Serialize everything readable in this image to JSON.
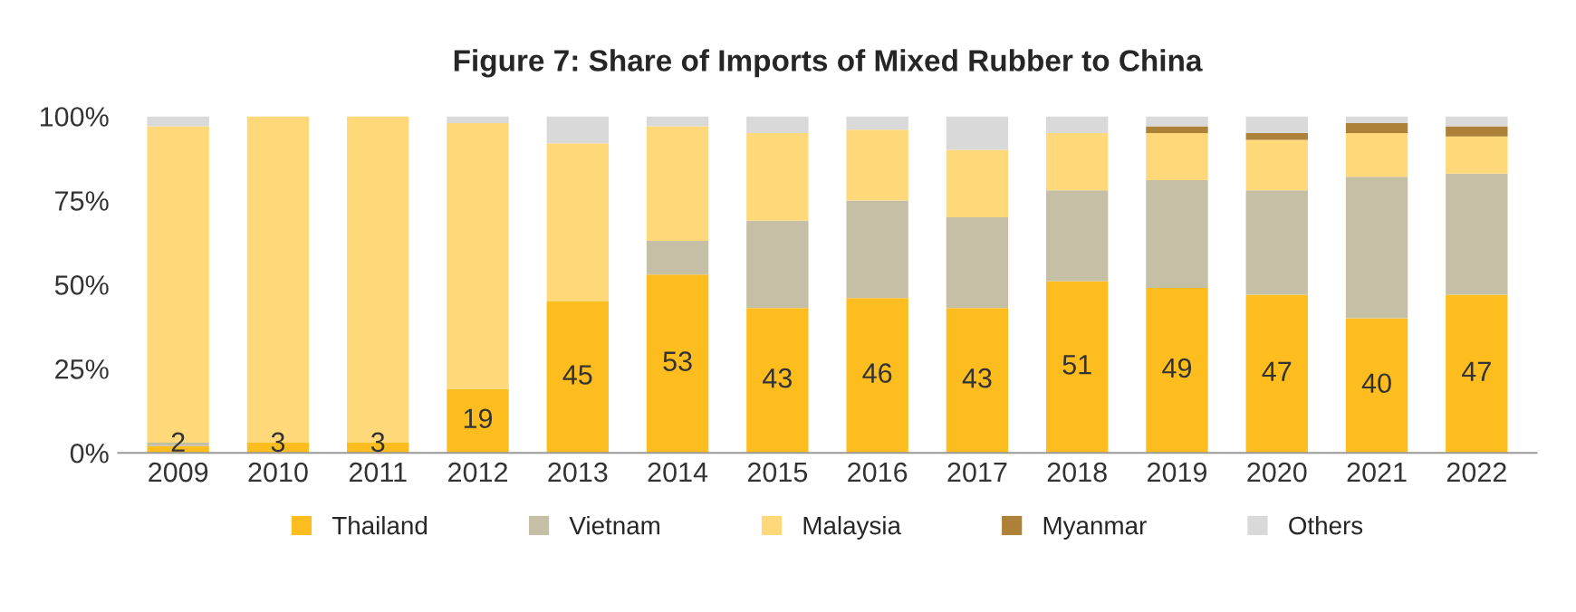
{
  "chart_data": {
    "type": "bar",
    "title": "Figure 7: Share of Imports of Mixed Rubber to China",
    "stacked": true,
    "categories": [
      "2009",
      "2010",
      "2011",
      "2012",
      "2013",
      "2014",
      "2015",
      "2016",
      "2017",
      "2018",
      "2019",
      "2020",
      "2021",
      "2022"
    ],
    "series": [
      {
        "name": "Thailand",
        "color": "#fdbd1f",
        "values": [
          2,
          3,
          3,
          19,
          45,
          53,
          43,
          46,
          43,
          51,
          49,
          47,
          40,
          47
        ],
        "value_labels": [
          "2",
          "3",
          "3",
          "19",
          "45",
          "53",
          "43",
          "46",
          "43",
          "51",
          "49",
          "47",
          "40",
          "47"
        ]
      },
      {
        "name": "Vietnam",
        "color": "#c5bfa5",
        "values": [
          1,
          0,
          0,
          0,
          0,
          10,
          26,
          29,
          27,
          27,
          32,
          31,
          42,
          36
        ]
      },
      {
        "name": "Malaysia",
        "color": "#fed879",
        "values": [
          94,
          97,
          97,
          79,
          47,
          34,
          26,
          21,
          20,
          17,
          14,
          15,
          13,
          11
        ]
      },
      {
        "name": "Myanmar",
        "color": "#ad8138",
        "values": [
          0,
          0,
          0,
          0,
          0,
          0,
          0,
          0,
          0,
          0,
          2,
          2,
          3,
          3
        ]
      },
      {
        "name": "Others",
        "color": "#d9d9d9",
        "values": [
          3,
          0,
          0,
          2,
          8,
          3,
          5,
          4,
          10,
          5,
          3,
          5,
          2,
          3
        ]
      }
    ],
    "ylim": [
      0,
      100
    ],
    "yticks": [
      {
        "value": 0,
        "label": "0%"
      },
      {
        "value": 25,
        "label": "25%"
      },
      {
        "value": 50,
        "label": "50%"
      },
      {
        "value": 75,
        "label": "75%"
      },
      {
        "value": 100,
        "label": "100%"
      }
    ],
    "grid": false,
    "legend": "bottom"
  }
}
